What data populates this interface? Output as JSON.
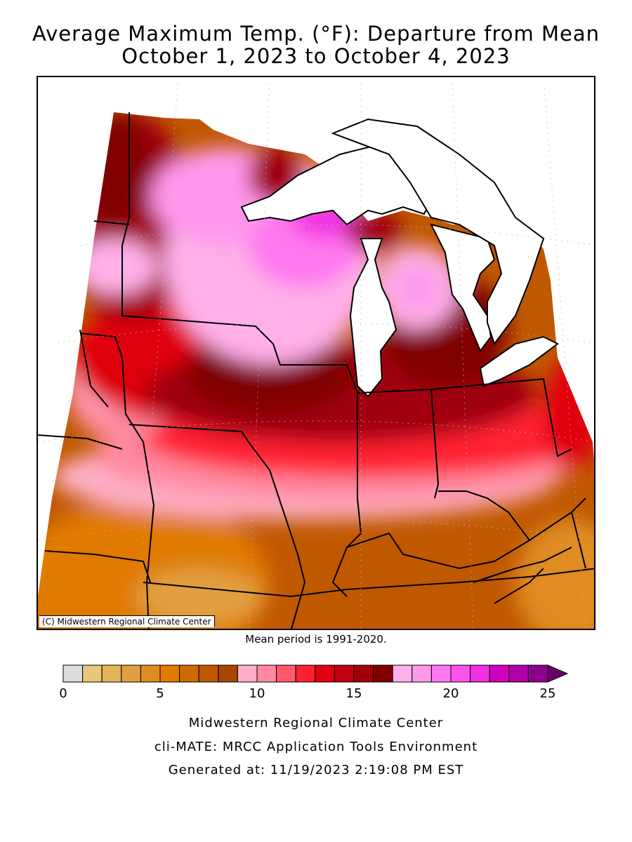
{
  "title_line1": "Average Maximum Temp. (°F): Departure from Mean",
  "title_line2": "October 1, 2023 to October 4, 2023",
  "copyright": "(C) Midwestern Regional Climate Center",
  "mean_period": "Mean period is 1991-2020.",
  "legend": {
    "colors": [
      "#dcdcdc",
      "#e8c87a",
      "#e4b55a",
      "#e2a040",
      "#e08c20",
      "#e07a00",
      "#d06a00",
      "#c05800",
      "#a84500",
      "#ffb0c8",
      "#ff8aa0",
      "#ff5a6a",
      "#ff2030",
      "#e00010",
      "#c00010",
      "#a00008",
      "#800000",
      "#ffb0e8",
      "#ff98ec",
      "#ff78f0",
      "#ff50f0",
      "#f030e0",
      "#d000c0",
      "#b000a8",
      "#900090"
    ],
    "tick_labels": [
      "0",
      "5",
      "10",
      "15",
      "20",
      "25"
    ],
    "arrow_color": "#6a006a"
  },
  "footer": {
    "line1": "Midwestern Regional Climate Center",
    "line2": "cli-MATE: MRCC Application Tools Environment",
    "line3": "Generated at: 11/19/2023 2:19:08 PM EST"
  }
}
